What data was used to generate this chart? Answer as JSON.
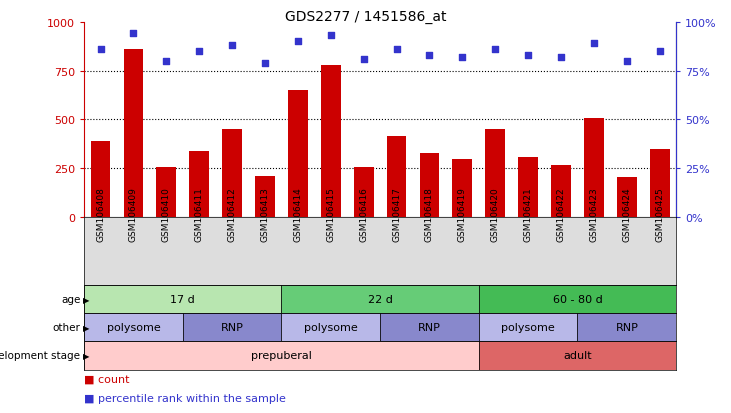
{
  "title": "GDS2277 / 1451586_at",
  "samples": [
    "GSM106408",
    "GSM106409",
    "GSM106410",
    "GSM106411",
    "GSM106412",
    "GSM106413",
    "GSM106414",
    "GSM106415",
    "GSM106416",
    "GSM106417",
    "GSM106418",
    "GSM106419",
    "GSM106420",
    "GSM106421",
    "GSM106422",
    "GSM106423",
    "GSM106424",
    "GSM106425"
  ],
  "counts": [
    390,
    860,
    255,
    335,
    450,
    210,
    650,
    780,
    255,
    415,
    325,
    295,
    450,
    305,
    265,
    505,
    205,
    350
  ],
  "percentiles": [
    86,
    94,
    80,
    85,
    88,
    79,
    90,
    93,
    81,
    86,
    83,
    82,
    86,
    83,
    82,
    89,
    80,
    85
  ],
  "bar_color": "#cc0000",
  "dot_color": "#3333cc",
  "ylim_left": [
    0,
    1000
  ],
  "yticks_left": [
    0,
    250,
    500,
    750,
    1000
  ],
  "yticks_right_labels": [
    "0%",
    "25%",
    "50%",
    "75%",
    "100%"
  ],
  "grid_lines": [
    250,
    500,
    750
  ],
  "age_groups": [
    {
      "label": "17 d",
      "start": 0,
      "end": 6,
      "color": "#b8e6b0"
    },
    {
      "label": "22 d",
      "start": 6,
      "end": 12,
      "color": "#66cc77"
    },
    {
      "label": "60 - 80 d",
      "start": 12,
      "end": 18,
      "color": "#44bb55"
    }
  ],
  "other_groups": [
    {
      "label": "polysome",
      "start": 0,
      "end": 3,
      "color": "#b8b8e8"
    },
    {
      "label": "RNP",
      "start": 3,
      "end": 6,
      "color": "#8888cc"
    },
    {
      "label": "polysome",
      "start": 6,
      "end": 9,
      "color": "#b8b8e8"
    },
    {
      "label": "RNP",
      "start": 9,
      "end": 12,
      "color": "#8888cc"
    },
    {
      "label": "polysome",
      "start": 12,
      "end": 15,
      "color": "#b8b8e8"
    },
    {
      "label": "RNP",
      "start": 15,
      "end": 18,
      "color": "#8888cc"
    }
  ],
  "stage_groups": [
    {
      "label": "prepuberal",
      "start": 0,
      "end": 12,
      "color": "#ffcccc"
    },
    {
      "label": "adult",
      "start": 12,
      "end": 18,
      "color": "#dd6666"
    }
  ],
  "row_labels": [
    "age",
    "other",
    "development stage"
  ],
  "legend_items": [
    {
      "color": "#cc0000",
      "label": "count"
    },
    {
      "color": "#3333cc",
      "label": "percentile rank within the sample"
    }
  ],
  "xtick_bg": "#dddddd",
  "background_color": "#ffffff"
}
